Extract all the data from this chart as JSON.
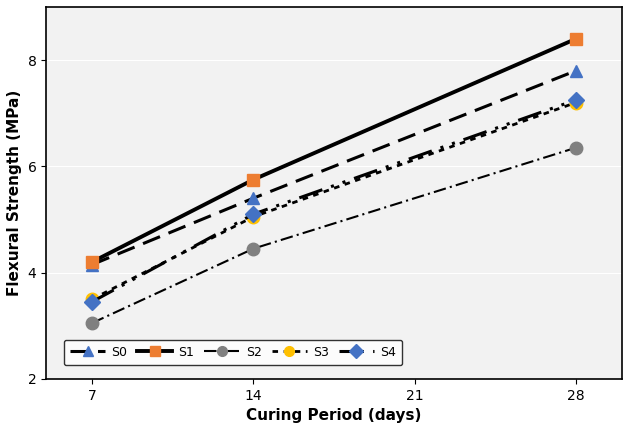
{
  "x": [
    7,
    14,
    28
  ],
  "series": {
    "S0": {
      "values": [
        4.15,
        5.4,
        7.8
      ],
      "color": "black",
      "linestyle": "--",
      "marker": "^",
      "marker_color": "#4472C4",
      "markersize": 8,
      "linewidth": 2.2
    },
    "S1": {
      "values": [
        4.2,
        5.75,
        8.4
      ],
      "color": "black",
      "linestyle": "-",
      "marker": "s",
      "marker_color": "#ED7D31",
      "markersize": 8,
      "linewidth": 2.8
    },
    "S2": {
      "values": [
        3.05,
        4.45,
        6.35
      ],
      "color": "black",
      "linestyle": "--",
      "marker": "o",
      "marker_color": "#808080",
      "markersize": 9,
      "linewidth": 1.5
    },
    "S3": {
      "values": [
        3.5,
        5.05,
        7.2
      ],
      "color": "black",
      "linestyle": ":",
      "marker": "o",
      "marker_color": "#FFC000",
      "markersize": 9,
      "linewidth": 2.0
    },
    "S4": {
      "values": [
        3.45,
        5.1,
        7.25
      ],
      "color": "black",
      "linestyle": "-",
      "marker": "D",
      "marker_color": "#4472C4",
      "markersize": 8,
      "linewidth": 2.2
    }
  },
  "xlabel": "Curing Period (days)",
  "ylabel": "Flexural Strength (MPa)",
  "xlim": [
    5,
    30
  ],
  "ylim": [
    2,
    9
  ],
  "xticks": [
    7,
    14,
    21,
    28
  ],
  "yticks": [
    2,
    4,
    6,
    8
  ],
  "legend_order": [
    "S0",
    "S1",
    "S2",
    "S3",
    "S4"
  ],
  "bg_color": "#F2F2F2"
}
